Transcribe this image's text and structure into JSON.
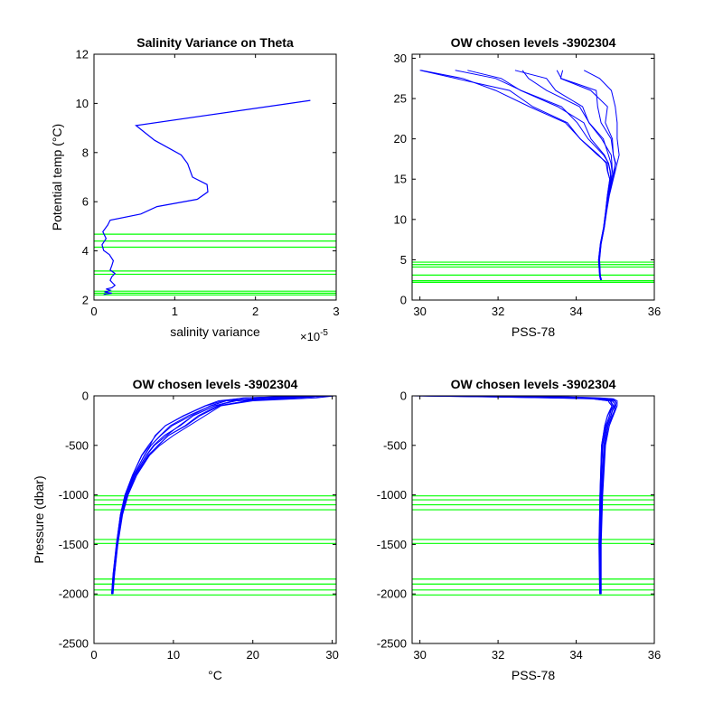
{
  "chart_data": [
    {
      "type": "line",
      "title": "Salinity Variance on Theta",
      "xlabel": "salinity variance",
      "ylabel": "Potential temp (°C)",
      "x_exponent_label": "×10",
      "x_exponent_power": "-5",
      "xlim": [
        0,
        3
      ],
      "ylim": [
        2,
        12
      ],
      "xticks": [
        0,
        1,
        2,
        3
      ],
      "xtick_labels": [
        "0",
        "1",
        "2",
        "3"
      ],
      "yticks": [
        2,
        4,
        6,
        8,
        10,
        12
      ],
      "ytick_labels": [
        "2",
        "4",
        "6",
        "8",
        "10",
        "12"
      ],
      "series": [
        {
          "color": "#0000ff",
          "x": [
            2.68,
            0.52,
            0.75,
            1.08,
            1.16,
            1.22,
            1.4,
            1.41,
            1.28,
            0.78,
            0.58,
            0.2,
            0.17,
            0.11,
            0.15,
            0.1,
            0.12,
            0.19,
            0.24,
            0.22,
            0.2,
            0.26,
            0.22,
            0.2,
            0.23,
            0.26,
            0.22,
            0.15,
            0.2,
            0.16,
            0.13,
            0.18,
            0.22,
            0.15,
            0.12
          ],
          "y": [
            10.12,
            9.1,
            8.5,
            7.9,
            7.55,
            7.0,
            6.7,
            6.4,
            6.1,
            5.8,
            5.5,
            5.25,
            5.05,
            4.78,
            4.5,
            4.25,
            4.02,
            3.85,
            3.6,
            3.4,
            3.22,
            3.08,
            2.95,
            2.8,
            2.7,
            2.6,
            2.5,
            2.45,
            2.4,
            2.35,
            2.33,
            2.3,
            2.28,
            2.25,
            2.22
          ]
        }
      ],
      "hlines": [
        2.21,
        2.28,
        2.36,
        3.05,
        3.18,
        4.15,
        4.4,
        4.68
      ],
      "hline_color": "#00ff00"
    },
    {
      "type": "line",
      "title": "OW chosen levels -3902304",
      "xlabel": "PSS-78",
      "ylabel": "",
      "xlim": [
        29.8,
        36
      ],
      "ylim": [
        0,
        30.5
      ],
      "xticks": [
        30,
        32,
        34,
        36
      ],
      "xtick_labels": [
        "30",
        "32",
        "34",
        "36"
      ],
      "yticks": [
        0,
        5,
        10,
        15,
        20,
        25,
        30
      ],
      "ytick_labels": [
        "0",
        "5",
        "10",
        "15",
        "20",
        "25",
        "30"
      ],
      "envelope": {
        "color": "#0000ff",
        "y": [
          28.5,
          27.5,
          26,
          24,
          22,
          20,
          18,
          17,
          16,
          15,
          13,
          11,
          9,
          7,
          5,
          3,
          2.5
        ],
        "x_low": [
          30.0,
          30.6,
          31.8,
          32.8,
          33.6,
          34.1,
          34.5,
          34.75,
          34.8,
          34.85,
          34.8,
          34.75,
          34.7,
          34.62,
          34.57,
          34.6,
          34.62
        ],
        "x_high": [
          34.2,
          34.6,
          34.9,
          35.0,
          35.05,
          35.05,
          35.1,
          35.05,
          35.0,
          34.95,
          34.85,
          34.78,
          34.72,
          34.64,
          34.6,
          34.62,
          34.65
        ]
      },
      "hlines": [
        2.2,
        2.4,
        3.1,
        4.1,
        4.4,
        4.7
      ],
      "hline_color": "#00ff00"
    },
    {
      "type": "line",
      "title": "OW chosen levels -3902304",
      "xlabel": "°C",
      "ylabel": "Pressure (dbar)",
      "xlim": [
        0,
        30.5
      ],
      "ylim": [
        -2500,
        0
      ],
      "xticks": [
        0,
        10,
        20,
        30
      ],
      "xtick_labels": [
        "0",
        "10",
        "20",
        "30"
      ],
      "yticks": [
        0,
        -500,
        -1000,
        -1500,
        -2000,
        -2500
      ],
      "ytick_labels": [
        "0",
        "-500",
        "-1000",
        "-1500",
        "-2000",
        "-2500"
      ],
      "envelope": {
        "color": "#0000ff",
        "y": [
          0,
          -20,
          -50,
          -100,
          -200,
          -300,
          -400,
          -500,
          -600,
          -800,
          -1000,
          -1200,
          -1500,
          -1800,
          -2000
        ],
        "x_low": [
          26.5,
          18,
          15.5,
          14,
          11,
          9,
          7.5,
          6.8,
          6,
          4.8,
          3.9,
          3.3,
          2.8,
          2.4,
          2.2
        ],
        "x_high": [
          30.3,
          28,
          20,
          16,
          14,
          12,
          10,
          8.3,
          7,
          5.4,
          4.3,
          3.6,
          3.0,
          2.6,
          2.4
        ]
      },
      "hlines": [
        -1010,
        -1050,
        -1100,
        -1150,
        -1450,
        -1490,
        -1850,
        -1900,
        -1960,
        -2010
      ],
      "hline_color": "#00ff00"
    },
    {
      "type": "line",
      "title": "OW chosen levels -3902304",
      "xlabel": "PSS-78",
      "ylabel": "",
      "xlim": [
        29.8,
        36
      ],
      "ylim": [
        -2500,
        0
      ],
      "xticks": [
        30,
        32,
        34,
        36
      ],
      "xtick_labels": [
        "30",
        "32",
        "34",
        "36"
      ],
      "yticks": [
        0,
        -500,
        -1000,
        -1500,
        -2000,
        -2500
      ],
      "ytick_labels": [
        "0",
        "-500",
        "-1000",
        "-1500",
        "-2000",
        "-2500"
      ],
      "envelope": {
        "color": "#0000ff",
        "y": [
          0,
          -10,
          -20,
          -30,
          -50,
          -70,
          -100,
          -150,
          -200,
          -300,
          -500,
          -1000,
          -1500,
          -2000
        ],
        "x_low": [
          29.8,
          31.5,
          33.2,
          34.4,
          34.8,
          34.85,
          34.9,
          34.85,
          34.8,
          34.72,
          34.65,
          34.6,
          34.58,
          34.6
        ],
        "x_high": [
          31.0,
          33.8,
          34.6,
          34.95,
          35.05,
          35.05,
          35.05,
          35.0,
          34.95,
          34.85,
          34.75,
          34.68,
          34.64,
          34.64
        ]
      },
      "hlines": [
        -1010,
        -1050,
        -1100,
        -1150,
        -1450,
        -1490,
        -1850,
        -1900,
        -1960,
        -2010
      ],
      "hline_color": "#00ff00"
    }
  ]
}
